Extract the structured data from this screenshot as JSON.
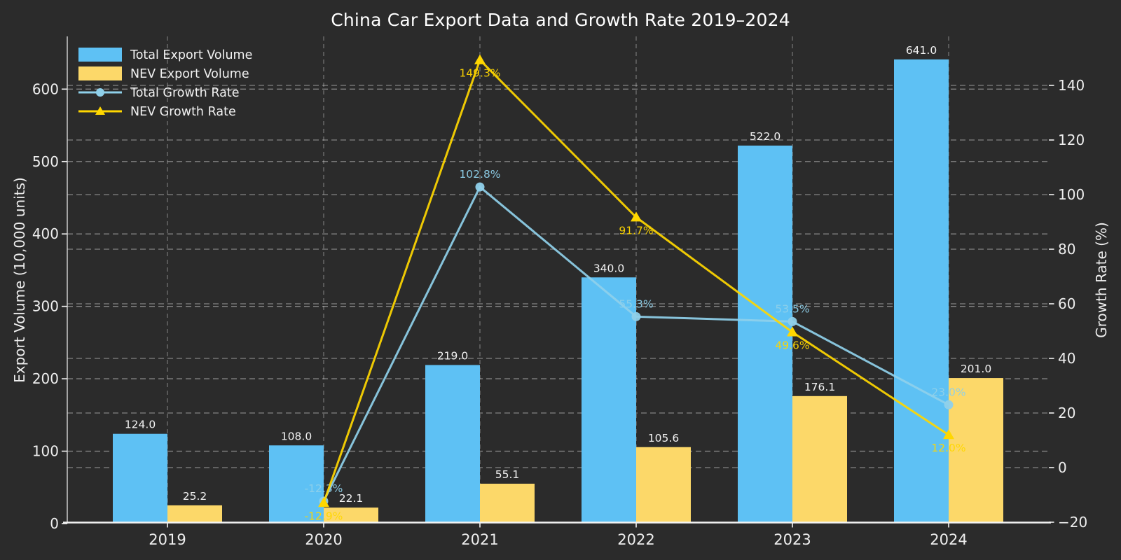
{
  "title": "China Car Export Data and Growth Rate 2019–2024",
  "chart_data": {
    "type": "bar+line",
    "title": "China Car Export Data and Growth Rate 2019–2024",
    "categories": [
      "2019",
      "2020",
      "2021",
      "2022",
      "2023",
      "2024"
    ],
    "left_axis": {
      "label": "Export Volume (10,000 units)",
      "tick_labels": [
        "0",
        "100",
        "200",
        "300",
        "400",
        "500",
        "600"
      ],
      "tick_values": [
        0,
        100,
        200,
        300,
        400,
        500,
        600
      ],
      "range": [
        0,
        672
      ]
    },
    "right_axis": {
      "label": "Growth Rate (%)",
      "tick_labels": [
        "−20",
        "0",
        "20",
        "40",
        "60",
        "80",
        "100",
        "120",
        "140"
      ],
      "tick_values": [
        -20,
        0,
        20,
        40,
        60,
        80,
        100,
        120,
        140
      ],
      "range": [
        -20,
        158
      ]
    },
    "grid": "both-dashed",
    "legend_position": "upper-left",
    "series": [
      {
        "name": "Total Export Volume",
        "type": "bar",
        "axis": "left",
        "color": "#5ec1f4",
        "values": [
          124.0,
          108.0,
          219.0,
          340.0,
          522.0,
          641.0
        ],
        "labels": [
          "124.0",
          "108.0",
          "219.0",
          "340.0",
          "522.0",
          "641.0"
        ]
      },
      {
        "name": "NEV Export Volume",
        "type": "bar",
        "axis": "left",
        "color": "#fcd869",
        "values": [
          25.2,
          22.1,
          55.1,
          105.6,
          176.1,
          201.0
        ],
        "labels": [
          "25.2",
          "22.1",
          "55.1",
          "105.6",
          "176.1",
          "201.0"
        ]
      },
      {
        "name": "Total Growth Rate",
        "type": "line",
        "axis": "right",
        "marker": "circle",
        "color": "#8fd0ea",
        "start_index": 1,
        "values": [
          -12.3,
          102.8,
          55.3,
          53.5,
          23.0
        ],
        "labels": [
          "-12.3%",
          "102.8%",
          "55.3%",
          "53.5%",
          "23.0%"
        ],
        "label_side": "above"
      },
      {
        "name": "NEV Growth Rate",
        "type": "line",
        "axis": "right",
        "marker": "triangle",
        "color": "#ffd700",
        "start_index": 1,
        "values": [
          -12.9,
          149.3,
          91.7,
          49.6,
          12.0
        ],
        "labels": [
          "-12.9%",
          "149.3%",
          "91.7%",
          "49.6%",
          "12.0%"
        ],
        "label_side": "below"
      }
    ]
  },
  "colors": {
    "background": "#2b2b2b",
    "text": "#f0f0f0",
    "grid_horizontal": "rgba(255,255,255,0.42)",
    "grid_vertical": "rgba(185,185,185,0.5)",
    "spine": "#f2f2f2"
  }
}
